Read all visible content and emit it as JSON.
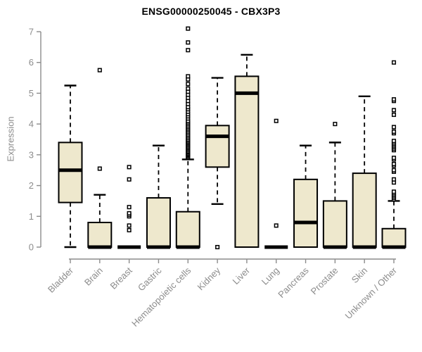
{
  "title": "ENSG00000250045 - CBX3P3",
  "colors": {
    "box_fill": "#EEE8CD",
    "box_border": "#000000",
    "median": "#000000",
    "whisker": "#000000",
    "outlier_stroke": "#000000",
    "outlier_fill": "#ffffff",
    "axis": "#8c8c8c",
    "tick_label": "#8c8c8c",
    "title_color": "#000000",
    "background": "#ffffff"
  },
  "chart_data": {
    "type": "boxplot",
    "title": "ENSG00000250045 - CBX3P3",
    "xlabel": "",
    "ylabel": "Expression",
    "ylim": [
      0,
      7
    ],
    "yticks": [
      0,
      1,
      2,
      3,
      4,
      5,
      6,
      7
    ],
    "grid": false,
    "legend": "none",
    "categories": [
      "Bladder",
      "Brain",
      "Breast",
      "Gastric",
      "Hematopoietic cells",
      "Kidney",
      "Liver",
      "Lung",
      "Pancreas",
      "Prostate",
      "Skin",
      "Unknown / Other"
    ],
    "boxes": [
      {
        "category": "Bladder",
        "min": 0,
        "q1": 1.45,
        "median": 2.5,
        "q3": 3.4,
        "max": 5.25,
        "outliers": []
      },
      {
        "category": "Brain",
        "min": 0,
        "q1": 0,
        "median": 0,
        "q3": 0.8,
        "max": 1.7,
        "outliers": [
          2.55,
          5.75
        ]
      },
      {
        "category": "Breast",
        "min": 0,
        "q1": 0,
        "median": 0,
        "q3": 0,
        "max": 0,
        "outliers": [
          0.55,
          0.7,
          1.0,
          1.05,
          1.1,
          1.3,
          2.2,
          2.6
        ]
      },
      {
        "category": "Gastric",
        "min": 0,
        "q1": 0,
        "median": 0,
        "q3": 1.6,
        "max": 3.3,
        "outliers": []
      },
      {
        "category": "Hematopoietic cells",
        "min": 0,
        "q1": 0,
        "median": 0,
        "q3": 1.15,
        "max": 2.85,
        "outliers": [
          2.9,
          2.93,
          2.97,
          3.0,
          3.03,
          3.07,
          3.1,
          3.14,
          3.18,
          3.22,
          3.26,
          3.3,
          3.34,
          3.38,
          3.42,
          3.46,
          3.5,
          3.55,
          3.6,
          3.65,
          3.7,
          3.75,
          3.8,
          3.85,
          3.9,
          3.95,
          4.0,
          4.05,
          4.1,
          4.18,
          4.25,
          4.32,
          4.4,
          4.48,
          4.55,
          4.65,
          4.75,
          4.85,
          4.95,
          5.05,
          5.15,
          5.3,
          5.45,
          5.55,
          6.4,
          6.65,
          7.1
        ]
      },
      {
        "category": "Kidney",
        "min": 1.4,
        "q1": 2.6,
        "median": 3.6,
        "q3": 3.95,
        "max": 5.5,
        "outliers": [
          0
        ]
      },
      {
        "category": "Liver",
        "min": 0,
        "q1": 0,
        "median": 5.0,
        "q3": 5.55,
        "max": 6.25,
        "outliers": []
      },
      {
        "category": "Lung",
        "min": 0,
        "q1": 0,
        "median": 0,
        "q3": 0,
        "max": 0,
        "outliers": [
          0.7,
          4.1
        ]
      },
      {
        "category": "Pancreas",
        "min": 0,
        "q1": 0,
        "median": 0.8,
        "q3": 2.2,
        "max": 3.3,
        "outliers": []
      },
      {
        "category": "Prostate",
        "min": 0,
        "q1": 0,
        "median": 0,
        "q3": 1.5,
        "max": 3.4,
        "outliers": [
          4.0
        ]
      },
      {
        "category": "Skin",
        "min": 0,
        "q1": 0,
        "median": 0,
        "q3": 2.4,
        "max": 4.9,
        "outliers": []
      },
      {
        "category": "Unknown / Other",
        "min": 0,
        "q1": 0,
        "median": 0,
        "q3": 0.6,
        "max": 1.5,
        "outliers": [
          1.55,
          1.6,
          1.65,
          1.7,
          1.75,
          1.8,
          2.1,
          2.2,
          2.45,
          2.5,
          2.65,
          2.7,
          2.85,
          2.9,
          3.15,
          3.2,
          3.25,
          3.3,
          3.35,
          3.4,
          3.45,
          3.7,
          3.75,
          3.9,
          4.3,
          4.45,
          4.75,
          4.8,
          6.0
        ]
      }
    ]
  }
}
